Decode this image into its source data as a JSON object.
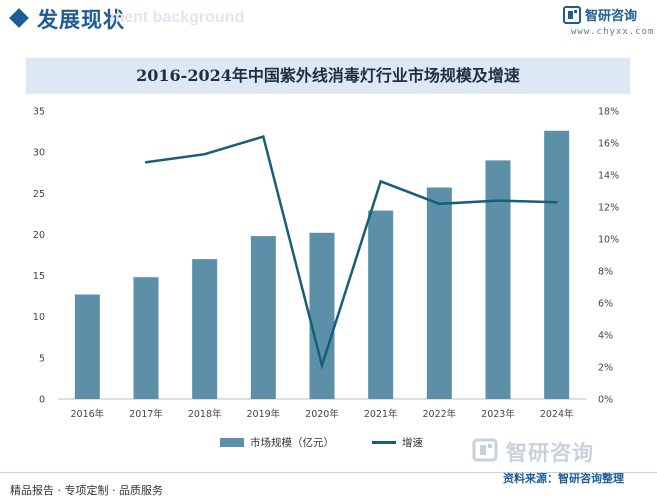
{
  "header": {
    "title": "发展现状",
    "ghost_text": "ment background",
    "brand": "智研咨询",
    "url": "www.chyxx.com"
  },
  "chart_data": {
    "type": "bar+line",
    "title": "2016-2024年中国紫外线消毒灯行业市场规模及增速",
    "categories": [
      "2016年",
      "2017年",
      "2018年",
      "2019年",
      "2020年",
      "2021年",
      "2022年",
      "2023年",
      "2024年"
    ],
    "series": [
      {
        "name": "市场规模（亿元）",
        "type": "bar",
        "axis": "left",
        "values": [
          12.7,
          14.8,
          17.0,
          19.8,
          20.2,
          22.9,
          25.7,
          29.0,
          32.6
        ]
      },
      {
        "name": "增速",
        "type": "line",
        "axis": "right",
        "values": [
          null,
          14.8,
          15.3,
          16.4,
          2.1,
          13.6,
          12.2,
          12.4,
          12.3
        ]
      }
    ],
    "y_left": {
      "min": 0,
      "max": 35,
      "step": 5,
      "ticks": [
        "0",
        "5",
        "10",
        "15",
        "20",
        "25",
        "30",
        "35"
      ]
    },
    "y_right": {
      "min": 0,
      "max": 18,
      "step": 2,
      "unit": "%",
      "ticks": [
        "0%",
        "2%",
        "4%",
        "6%",
        "8%",
        "10%",
        "12%",
        "14%",
        "16%",
        "18%"
      ]
    },
    "grid": false,
    "legend_position": "bottom"
  },
  "colors": {
    "bar": "#5b90a8",
    "line": "#165e7a",
    "accent": "#1d5c96",
    "title_bar": "#dce9f5"
  },
  "footer": {
    "left": "精品报告 · 专项定制 · 品质服务",
    "brand": "智研咨询",
    "source": "资料来源：智研咨询整理"
  }
}
